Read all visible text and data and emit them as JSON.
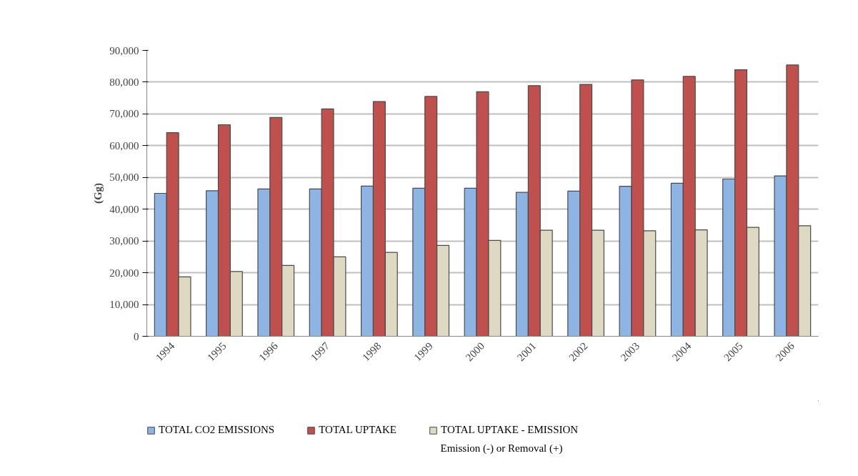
{
  "chart_data": {
    "type": "bar",
    "ylabel": "(Gg)",
    "categories": [
      "1994",
      "1995",
      "1996",
      "1997",
      "1998",
      "1999",
      "2000",
      "2001",
      "2002",
      "2003",
      "2004",
      "2005",
      "2006"
    ],
    "series": [
      {
        "name": "TOTAL CO2 EMISSIONS",
        "color": "#8eb4e3",
        "values": [
          45000,
          45800,
          46400,
          46400,
          47300,
          46600,
          46600,
          45300,
          45700,
          47200,
          48200,
          49500,
          50500
        ]
      },
      {
        "name": "TOTAL UPTAKE",
        "color": "#c0504d",
        "values": [
          64100,
          66600,
          68900,
          71600,
          73900,
          75500,
          77000,
          78900,
          79300,
          80700,
          81800,
          83900,
          85400
        ]
      },
      {
        "name": "TOTAL UPTAKE - EMISSION",
        "color": "#ddd9c3",
        "values": [
          18700,
          20400,
          22300,
          25000,
          26400,
          28600,
          30200,
          33400,
          33400,
          33200,
          33500,
          34300,
          34800
        ]
      }
    ],
    "ylim": [
      0,
      90000
    ],
    "yticks": [
      0,
      {
        "value": 10000,
        "label": "10,000"
      },
      {
        "value": 20000,
        "label": "20,000"
      },
      {
        "value": 30000,
        "label": "30,000"
      },
      {
        "value": 40000,
        "label": "40,000"
      },
      {
        "value": 50000,
        "label": "50,000"
      },
      {
        "value": 60000,
        "label": "60,000"
      },
      {
        "value": 70000,
        "label": "70,000"
      },
      {
        "value": 80000,
        "label": "80,000"
      },
      {
        "value": 90000,
        "label": "90,000"
      }
    ],
    "grid": "y",
    "legend": "bottom",
    "annotations": [
      "Emission (-) or Removal (+)"
    ]
  }
}
